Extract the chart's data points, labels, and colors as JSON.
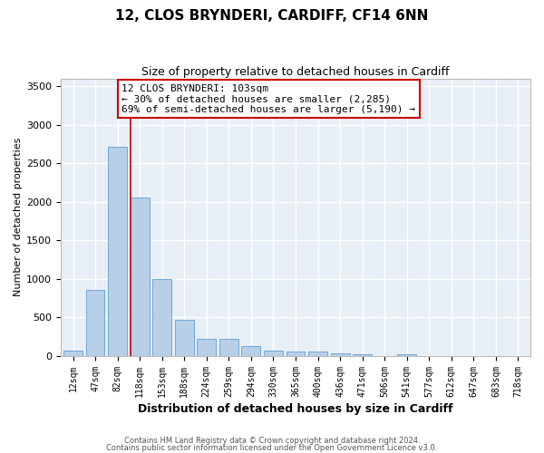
{
  "title": "12, CLOS BRYNDERI, CARDIFF, CF14 6NN",
  "subtitle": "Size of property relative to detached houses in Cardiff",
  "xlabel": "Distribution of detached houses by size in Cardiff",
  "ylabel": "Number of detached properties",
  "categories": [
    "12sqm",
    "47sqm",
    "82sqm",
    "118sqm",
    "153sqm",
    "188sqm",
    "224sqm",
    "259sqm",
    "294sqm",
    "330sqm",
    "365sqm",
    "400sqm",
    "436sqm",
    "471sqm",
    "506sqm",
    "541sqm",
    "577sqm",
    "612sqm",
    "647sqm",
    "683sqm",
    "718sqm"
  ],
  "values": [
    60,
    850,
    2710,
    2060,
    1000,
    460,
    220,
    220,
    130,
    60,
    50,
    50,
    30,
    20,
    0,
    20,
    0,
    0,
    0,
    0,
    0
  ],
  "bar_color": "#b8cfe8",
  "bar_edge_color": "#6ea8d8",
  "annotation_text": "12 CLOS BRYNDERI: 103sqm\n← 30% of detached houses are smaller (2,285)\n69% of semi-detached houses are larger (5,190) →",
  "annotation_box_color": "#ffffff",
  "annotation_box_edge_color": "#cc0000",
  "vline_color": "#cc0000",
  "background_color": "#e8eef5",
  "grid_color": "#ffffff",
  "ylim": [
    0,
    3600
  ],
  "yticks": [
    0,
    500,
    1000,
    1500,
    2000,
    2500,
    3000,
    3500
  ],
  "title_fontsize": 11,
  "subtitle_fontsize": 9,
  "xlabel_fontsize": 9,
  "ylabel_fontsize": 8,
  "tick_fontsize": 8,
  "footer_line1": "Contains HM Land Registry data © Crown copyright and database right 2024.",
  "footer_line2": "Contains public sector information licensed under the Open Government Licence v3.0.",
  "vline_index": 2.58
}
